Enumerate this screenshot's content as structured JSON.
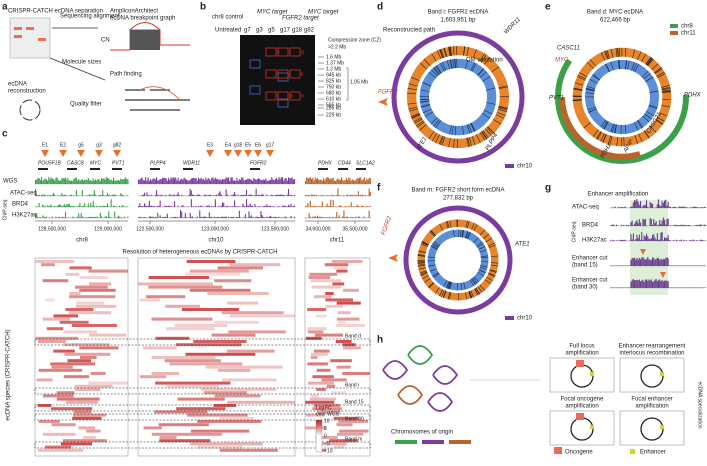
{
  "panels": [
    "a",
    "b",
    "c",
    "d",
    "e",
    "f",
    "g",
    "h"
  ],
  "a": {
    "title": "CRISPR-CATCH ecDNA separation",
    "align": "Sequencing alignment",
    "graph": [
      "AmpliconArchitect",
      "ecDNA breakpoint graph"
    ],
    "cn": "CN",
    "sizes": "Molecule sizes",
    "path": "Path finding",
    "filter": "Quality filter",
    "recon": [
      "ecDNA",
      "reconstruction"
    ]
  },
  "b": {
    "headers": [
      "chr8 control",
      "MYC target",
      "FGFR2 target",
      "MYC target"
    ],
    "lanes": [
      "Untreated",
      "g7",
      "g3",
      "g5",
      "g17",
      "g18",
      "g82"
    ],
    "cz": [
      "Compression zone (CZ)",
      ">2.2 Mb"
    ],
    "sizes": [
      "1.6 Mb",
      "1.37 Mb",
      "1.2 Mb",
      "945 kb",
      "825 kb",
      "750 kb",
      "680 kb",
      "610 kb",
      "565 kb",
      "285 kb",
      "225 kb"
    ],
    "bracket": "1.05 Mb",
    "boxes_blue": [
      "a",
      "b",
      "c",
      "d"
    ],
    "boxes_red": [
      "e",
      "f",
      "g",
      "i",
      "j",
      "k",
      "l",
      "m",
      "n"
    ]
  },
  "c": {
    "sites8": [
      "E1",
      "E2",
      "g5",
      "g3",
      "g82"
    ],
    "sites10": [
      "E3",
      "E4",
      "g18",
      "E5",
      "E6",
      "g17"
    ],
    "genes": [
      "POU5F1B",
      "CASC8",
      "MYC",
      "PVT1",
      "PLPP4",
      "WDR11",
      "FGFR2",
      "PDHX",
      "CD44",
      "SLC1A2"
    ],
    "tracks": [
      "WGS",
      "ATAC-seq",
      "BRD4",
      "H3K27ac"
    ],
    "chip": "ChIP-seq",
    "coords": [
      "128,500,000",
      "129,000,000",
      "122,500,000",
      "123,000,000",
      "123,500,000",
      "34,900,000",
      "35,500,000"
    ],
    "chroms": [
      "chr8",
      "chr10",
      "chr11"
    ],
    "heat_title": "Resolution of heterogeneous ecDNAs by CRISPR-CATCH",
    "species": "ecDNA species (CRISPR-CATCH)",
    "bands": [
      "Band d",
      "Band i",
      "Band 15",
      "Band 30",
      "Band m"
    ],
    "legend_title": [
      "Log",
      "FC",
      "over WGS"
    ],
    "legend_ticks": [
      "10",
      "5",
      "0",
      "−5",
      "−10"
    ]
  },
  "d": {
    "title": "Band i: FGFR2 ecDNA",
    "size": "1,603,951 bp",
    "path": "Reconstructed path",
    "om": "OM validation",
    "genes": [
      "WDR11",
      "FGFR2",
      "ATE1",
      "PLPP4"
    ],
    "chrom": "chr10"
  },
  "e": {
    "title": "Band d: MYC ecDNA",
    "size": "622,466 bp",
    "chroms": [
      "chr8",
      "chr11"
    ],
    "genes": [
      "CASC11",
      "MYC",
      "PDHX",
      "PVT1",
      "CASC21",
      "APIP",
      "PDHX"
    ]
  },
  "f": {
    "title": "Band m: FGFR2 short form ecDNA",
    "size": "277,832 bp",
    "genes": [
      "FGFR2",
      "ATE1"
    ],
    "chrom": "chr10"
  },
  "g": {
    "title": "Enhancer amplification",
    "tracks": [
      "ATAC-seq",
      "BRD4",
      "H3K27ac"
    ],
    "chip": "ChIP-seq",
    "cuts": [
      "Enhancer cut",
      "(band 15)",
      "Enhancer cut",
      "(band 30)"
    ]
  },
  "h": {
    "origin": "Chromosomes of origin",
    "full": [
      "Full locus",
      "amplification"
    ],
    "rearr": [
      "Enhancer rearrangement",
      "interlocus recombination"
    ],
    "onco": [
      "Focal oncogene",
      "amplification"
    ],
    "enh": [
      "Focal enhancer",
      "amplification"
    ],
    "spec": "ecDNA specialization",
    "legend": [
      "Oncogene",
      "Enhancer"
    ]
  }
}
